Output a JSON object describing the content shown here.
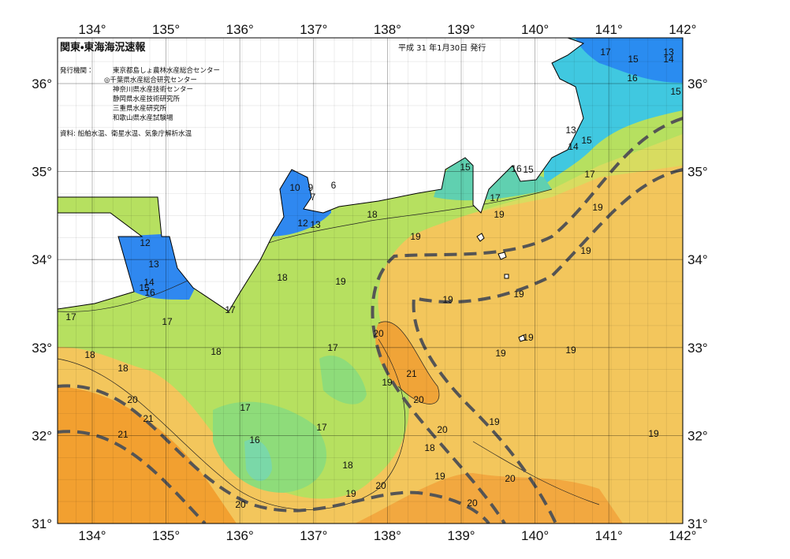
{
  "header": {
    "title": "関東・東海海況速報",
    "date": "平成 31 年1月30日 発行",
    "issuer_label": "発行機関：",
    "issuers": [
      "東京都島しょ農林水産総合センター",
      "◎千葉県水産総合研究センター",
      "神奈川県水産技術センター",
      "静岡県水産技術研究所",
      "三重県水産研究所",
      "和歌山県水産試験場"
    ],
    "source": "資料: 船舶水温、衛星水温、気象庁解析水温"
  },
  "lon_labels": [
    "134°",
    "135°",
    "136°",
    "137°",
    "138°",
    "139°",
    "140°",
    "141°",
    "142°"
  ],
  "lat_labels": [
    "31°",
    "32°",
    "33°",
    "34°",
    "35°",
    "36°"
  ],
  "contour_labels": [
    "17",
    "15",
    "13",
    "14",
    "16",
    "15",
    "13",
    "15",
    "14",
    "15",
    "16",
    "15",
    "17",
    "10",
    "9",
    "6",
    "7",
    "17",
    "19",
    "18",
    "19",
    "12",
    "13",
    "19",
    "12",
    "19",
    "13",
    "18",
    "19",
    "14",
    "15",
    "16",
    "19",
    "19",
    "17",
    "17",
    "17",
    "20",
    "19",
    "17",
    "18",
    "19",
    "19",
    "18",
    "18",
    "21",
    "19",
    "20",
    "20",
    "17",
    "21",
    "17",
    "20",
    "19",
    "21",
    "16",
    "18",
    "19",
    "18",
    "19",
    "20",
    "20",
    "19",
    "20",
    "20"
  ]
}
